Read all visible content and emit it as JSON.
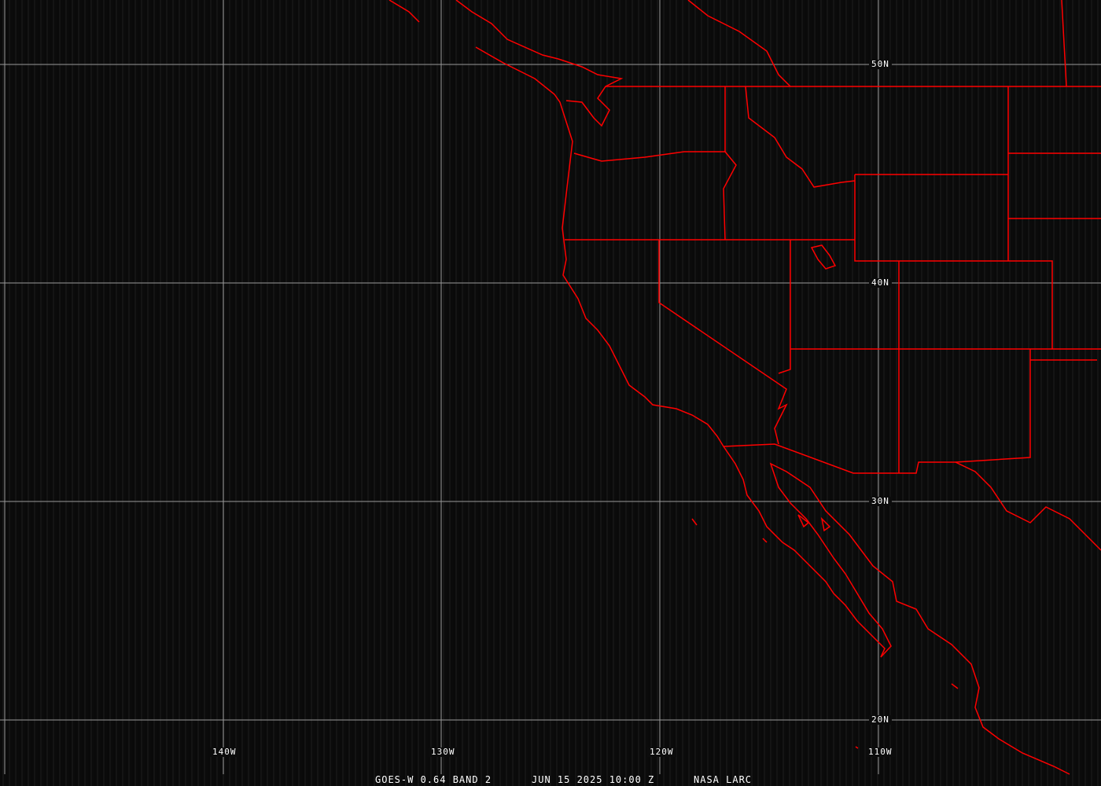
{
  "colors": {
    "background": "#0c0c0c",
    "grid": "#a0a0a0",
    "boundaries": "#ff0000",
    "text": "#ffffff"
  },
  "grid_labels": {
    "latitude": [
      "50N",
      "40N",
      "30N",
      "20N"
    ],
    "longitude": [
      "140W",
      "130W",
      "120W",
      "110W"
    ]
  },
  "caption": {
    "satellite": "GOES-W 0.64 BAND 2",
    "datetime": "JUN 15 2025 10:00 Z",
    "source": "NASA LARC"
  }
}
